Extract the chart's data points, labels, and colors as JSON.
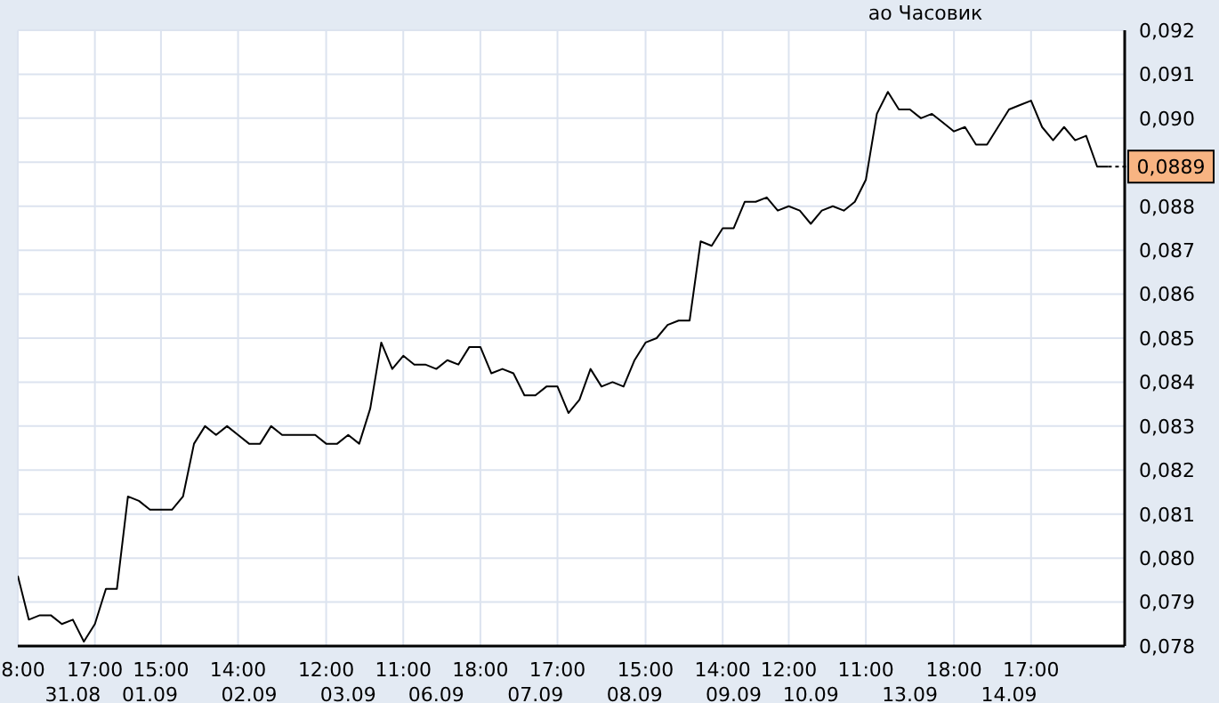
{
  "chart_data": {
    "type": "line",
    "title": "ао Часовик",
    "categories": [
      "8:00",
      null,
      null,
      null,
      null,
      "31.08",
      null,
      "17:00",
      null,
      null,
      null,
      null,
      "01.09",
      "15:00",
      null,
      null,
      null,
      null,
      null,
      null,
      "14:00",
      "02.09",
      null,
      null,
      null,
      null,
      null,
      null,
      "12:00",
      null,
      "03.09",
      null,
      null,
      null,
      null,
      "11:00",
      null,
      null,
      "06.09",
      null,
      null,
      null,
      "18:00",
      null,
      null,
      null,
      null,
      "07.09",
      null,
      "17:00",
      null,
      null,
      null,
      null,
      null,
      null,
      "08.09",
      "15:00",
      null,
      null,
      null,
      null,
      null,
      null,
      "14:00",
      "09.09",
      null,
      null,
      null,
      null,
      "12:00",
      null,
      "10.09",
      null,
      null,
      null,
      null,
      "11:00",
      null,
      null,
      null,
      "13.09",
      null,
      null,
      null,
      "18:00",
      null,
      null,
      null,
      null,
      "14.09",
      null,
      "17:00",
      null,
      null,
      null,
      null,
      null,
      null,
      null
    ],
    "series": [
      {
        "color": "#000000",
        "values": [
          0.0796,
          0.0786,
          0.0787,
          0.0787,
          0.0785,
          0.0786,
          0.0781,
          0.0785,
          0.0793,
          0.0793,
          0.0814,
          0.0813,
          0.0811,
          0.0811,
          0.0811,
          0.0814,
          0.0826,
          0.083,
          0.0828,
          0.083,
          0.0828,
          0.0826,
          0.0826,
          0.083,
          0.0828,
          0.0828,
          0.0828,
          0.0828,
          0.0826,
          0.0826,
          0.0828,
          0.0826,
          0.0834,
          0.0849,
          0.0843,
          0.0846,
          0.0844,
          0.0844,
          0.0843,
          0.0845,
          0.0844,
          0.0848,
          0.0848,
          0.0842,
          0.0843,
          0.0842,
          0.0837,
          0.0837,
          0.0839,
          0.0839,
          0.0833,
          0.0836,
          0.0843,
          0.0839,
          0.084,
          0.0839,
          0.0845,
          0.0849,
          0.085,
          0.0853,
          0.0854,
          0.0854,
          0.0872,
          0.0871,
          0.0875,
          0.0875,
          0.0881,
          0.0881,
          0.0882,
          0.0879,
          0.088,
          0.0879,
          0.0876,
          0.0879,
          0.088,
          0.0879,
          0.0881,
          0.0886,
          0.0901,
          0.0906,
          0.0902,
          0.0902,
          0.09,
          0.0901,
          0.0899,
          0.0897,
          0.0898,
          0.0894,
          0.0894,
          0.0898,
          0.0902,
          0.0903,
          0.0904,
          0.0898,
          0.0895,
          0.0898,
          0.0895,
          0.0896,
          0.0889,
          0.0889
        ],
        "value_labels": [
          null,
          null,
          null,
          null,
          null,
          null,
          null,
          null,
          null,
          null,
          null,
          null,
          null,
          null,
          null,
          null,
          null,
          null,
          null,
          null,
          null,
          null,
          null,
          null,
          null,
          null,
          null,
          null,
          null,
          null,
          null,
          null,
          null,
          null,
          null,
          null,
          null,
          null,
          null,
          null,
          null,
          null,
          null,
          null,
          null,
          null,
          null,
          null,
          null,
          null,
          null,
          null,
          null,
          null,
          null,
          null,
          null,
          null,
          null,
          null,
          null,
          null,
          null,
          null,
          null,
          null,
          null,
          null,
          null,
          null,
          null,
          null,
          null,
          null,
          null,
          null,
          null,
          null,
          null,
          null,
          null,
          null,
          null,
          null,
          null,
          null,
          null,
          null,
          null,
          null,
          null,
          null,
          null,
          null,
          null,
          null,
          null,
          null,
          null,
          "0,0889"
        ]
      }
    ],
    "ylim": [
      0.078,
      0.092
    ],
    "yticks": [
      {
        "value": 0.078,
        "label": "0,078"
      },
      {
        "value": 0.079,
        "label": "0,079"
      },
      {
        "value": 0.08,
        "label": "0,080"
      },
      {
        "value": 0.081,
        "label": "0,081"
      },
      {
        "value": 0.082,
        "label": "0,082"
      },
      {
        "value": 0.083,
        "label": "0,083"
      },
      {
        "value": 0.084,
        "label": "0,084"
      },
      {
        "value": 0.085,
        "label": "0,085"
      },
      {
        "value": 0.086,
        "label": "0,086"
      },
      {
        "value": 0.087,
        "label": "0,087"
      },
      {
        "value": 0.088,
        "label": "0,088"
      },
      {
        "value": 0.089,
        "label": null
      },
      {
        "value": 0.09,
        "label": "0,090"
      },
      {
        "value": 0.091,
        "label": "0,091"
      },
      {
        "value": 0.092,
        "label": "0,092"
      }
    ],
    "grid": true,
    "marker": "none",
    "line_style": "solid"
  }
}
